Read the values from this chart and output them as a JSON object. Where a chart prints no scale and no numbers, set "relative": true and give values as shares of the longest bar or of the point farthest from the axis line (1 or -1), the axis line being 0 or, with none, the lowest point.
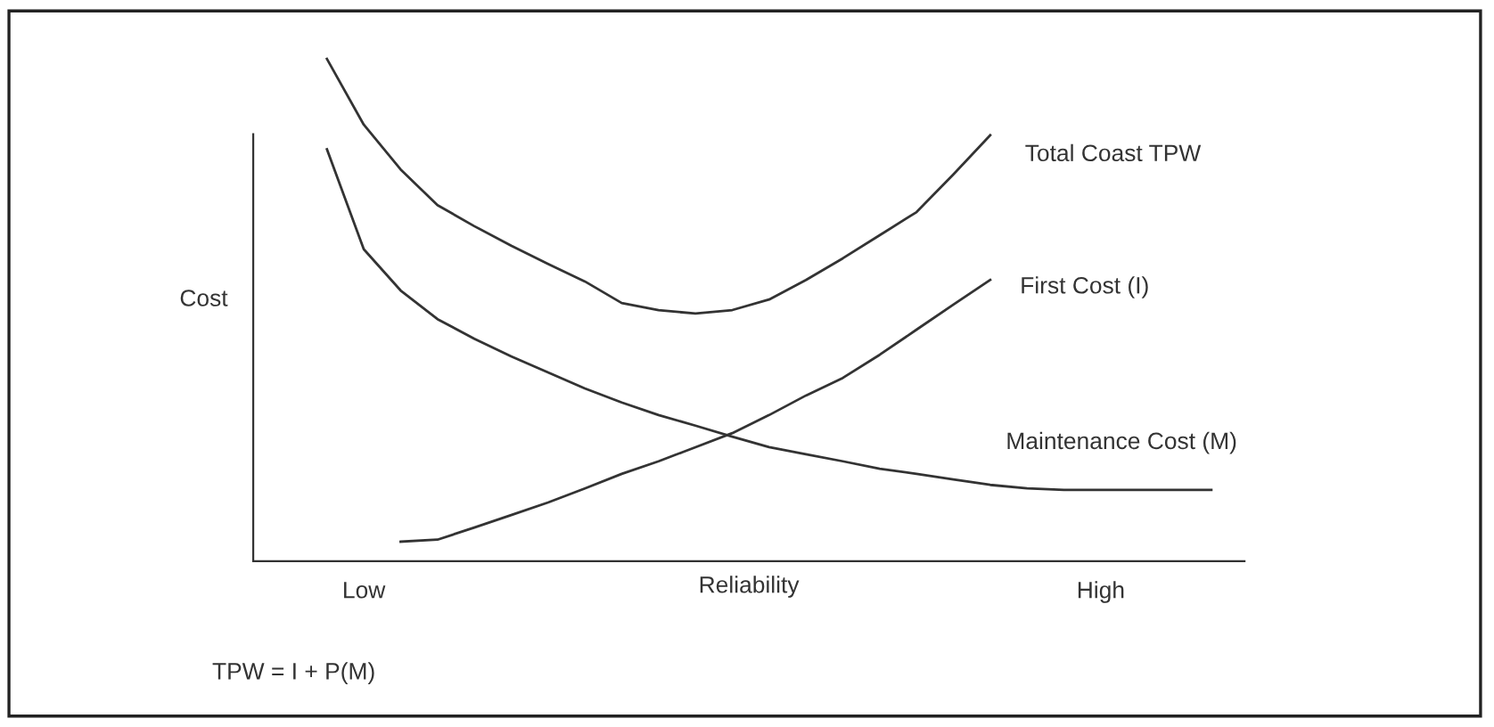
{
  "chart_data": {
    "type": "line",
    "relative": true,
    "ylabel": "Cost",
    "xlabel": "Reliability",
    "categories": [
      null,
      "Low",
      null,
      null,
      null,
      null,
      null,
      null,
      null,
      null,
      null,
      null,
      null,
      null,
      null,
      null,
      null,
      null,
      null,
      null,
      null,
      "High",
      null,
      null,
      null
    ],
    "annotations": [
      "TPW = I + P(M)"
    ],
    "grid": false,
    "legend": false,
    "marker": "none",
    "line_style": "solid",
    "series": [
      {
        "name": "Total Coast TPW",
        "color": "#333333",
        "values": [
          1.0,
          0.869,
          0.78,
          0.709,
          0.667,
          0.628,
          0.592,
          0.557,
          0.514,
          0.5,
          0.493,
          0.5,
          0.521,
          0.56,
          0.603,
          0.649,
          0.695,
          0.77,
          0.848,
          null,
          null,
          null,
          null,
          null,
          null
        ]
      },
      {
        "name": "First Cost (I)",
        "color": "#333333",
        "values": [
          null,
          null,
          0.039,
          0.043,
          0.067,
          0.092,
          0.117,
          0.145,
          0.174,
          0.199,
          0.227,
          0.255,
          0.291,
          0.33,
          0.365,
          0.411,
          0.461,
          0.511,
          0.56,
          null,
          null,
          null,
          null,
          null,
          null
        ]
      },
      {
        "name": "Maintenance Cost (M)",
        "color": "#333333",
        "values": [
          0.82,
          0.621,
          0.539,
          0.482,
          0.443,
          0.408,
          0.376,
          0.344,
          0.316,
          0.291,
          0.27,
          0.248,
          0.227,
          0.213,
          0.199,
          0.184,
          0.174,
          0.163,
          0.152,
          0.145,
          0.142,
          0.142,
          0.142,
          0.142,
          0.142
        ]
      }
    ]
  }
}
